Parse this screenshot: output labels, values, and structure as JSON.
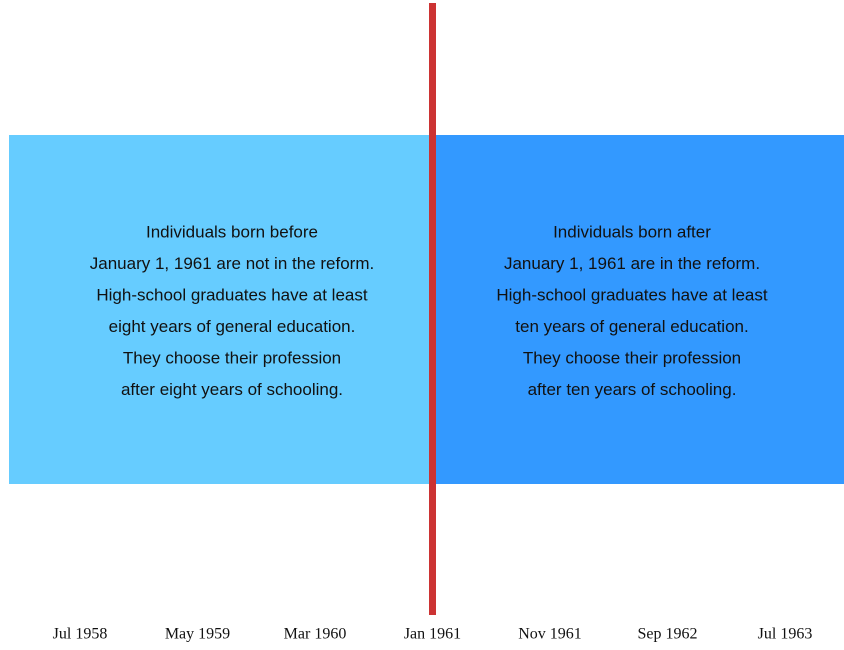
{
  "panels": [
    {
      "lines": [
        "Individuals born before",
        "January 1, 1961 are not in the reform.",
        "High-school graduates have at least",
        "eight years of general education.",
        "They choose their profession",
        "after eight years of schooling."
      ]
    },
    {
      "lines": [
        "Individuals born after",
        "January 1, 1961 are in the reform.",
        "High-school graduates have at least",
        "ten years of general education.",
        "They choose their profession",
        "after ten years of schooling."
      ]
    }
  ],
  "timeline": {
    "labels": [
      "Jul 1958",
      "May 1959",
      "Mar 1960",
      "Jan 1961",
      "Nov 1961",
      "Sep 1962",
      "Jul 1963"
    ]
  }
}
